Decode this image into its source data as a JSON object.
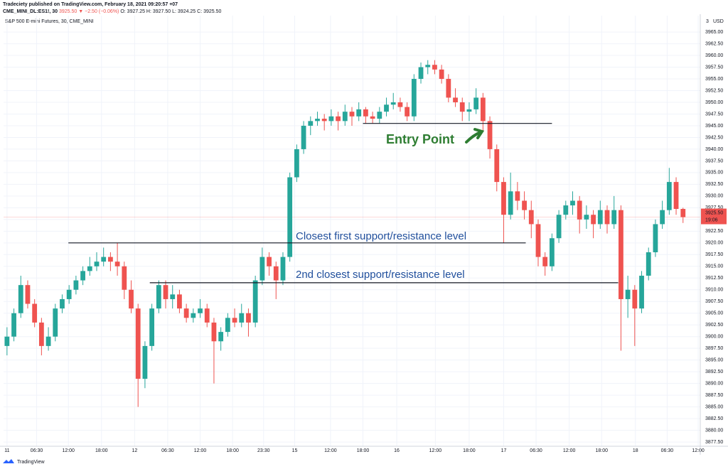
{
  "header": {
    "publisher": "Tradeciety published on TradingView.com, February 18, 2021 09:20:57 +07",
    "symbol": "CME_MINI_DL:ES1!, 30",
    "last": "3925.50",
    "change": "▼ −2.50 (−0.06%)",
    "ohlc": "O: 3927.25 H: 3927.50 L: 3924.25 C: 3925.50"
  },
  "footer": {
    "brand": "TradingView"
  },
  "chart_data": {
    "type": "candlestick",
    "title": "S&P 500 E-mini Futures, 30, CME_MINI",
    "currency_label": "USD",
    "scale_badge": "3",
    "up_color": "#26a69a",
    "down_color": "#ef5350",
    "grid": true,
    "last_price": {
      "value": 3925.5,
      "label": "3925.50",
      "countdown": "19:06",
      "color": "#ef5350"
    },
    "xlim": [
      -0.5,
      100.5
    ],
    "ylim": [
      3876.6,
      3968.5
    ],
    "xticks": [
      {
        "value": 0,
        "label": "11"
      },
      {
        "value": 4.3,
        "label": "06:30"
      },
      {
        "value": 8.9,
        "label": "12:00"
      },
      {
        "value": 13.7,
        "label": "18:00"
      },
      {
        "value": 18.5,
        "label": "12"
      },
      {
        "value": 23.3,
        "label": "06:30"
      },
      {
        "value": 28,
        "label": "12:00"
      },
      {
        "value": 32.7,
        "label": "18:00"
      },
      {
        "value": 37.2,
        "label": "23:30"
      },
      {
        "value": 41.7,
        "label": "15"
      },
      {
        "value": 46.9,
        "label": "12:00"
      },
      {
        "value": 51.6,
        "label": "18:00"
      },
      {
        "value": 56.5,
        "label": "16"
      },
      {
        "value": 62.1,
        "label": "12:00"
      },
      {
        "value": 67,
        "label": "18:00"
      },
      {
        "value": 72,
        "label": "17"
      },
      {
        "value": 76.7,
        "label": "06:30"
      },
      {
        "value": 81.5,
        "label": "12:00"
      },
      {
        "value": 86.2,
        "label": "18:00"
      },
      {
        "value": 91.1,
        "label": "18"
      },
      {
        "value": 95.7,
        "label": "06:30"
      },
      {
        "value": 100.2,
        "label": "12:00"
      }
    ],
    "yticks": [
      {
        "value": 3877.5,
        "label": "3877.50"
      },
      {
        "value": 3880,
        "label": "3880.00"
      },
      {
        "value": 3882.5,
        "label": "3882.50"
      },
      {
        "value": 3885,
        "label": "3885.00"
      },
      {
        "value": 3887.5,
        "label": "3887.50"
      },
      {
        "value": 3890,
        "label": "3890.00"
      },
      {
        "value": 3892.5,
        "label": "3892.50"
      },
      {
        "value": 3895,
        "label": "3895.00"
      },
      {
        "value": 3897.5,
        "label": "3897.50"
      },
      {
        "value": 3900,
        "label": "3900.00"
      },
      {
        "value": 3902.5,
        "label": "3902.50"
      },
      {
        "value": 3905,
        "label": "3905.00"
      },
      {
        "value": 3907.5,
        "label": "3907.50"
      },
      {
        "value": 3910,
        "label": "3910.00"
      },
      {
        "value": 3912.5,
        "label": "3912.50"
      },
      {
        "value": 3915,
        "label": "3915.00"
      },
      {
        "value": 3917.5,
        "label": "3917.50"
      },
      {
        "value": 3920,
        "label": "3920.00"
      },
      {
        "value": 3922.5,
        "label": "3922.50"
      },
      {
        "value": 3925,
        "label": "3925.00"
      },
      {
        "value": 3927.5,
        "label": "3927.50"
      },
      {
        "value": 3930,
        "label": "3930.00"
      },
      {
        "value": 3932.5,
        "label": "3932.50"
      },
      {
        "value": 3935,
        "label": "3935.00"
      },
      {
        "value": 3937.5,
        "label": "3937.50"
      },
      {
        "value": 3940,
        "label": "3940.00"
      },
      {
        "value": 3942.5,
        "label": "3942.50"
      },
      {
        "value": 3945,
        "label": "3945.00"
      },
      {
        "value": 3947.5,
        "label": "3947.50"
      },
      {
        "value": 3950,
        "label": "3950.00"
      },
      {
        "value": 3952.5,
        "label": "3952.50"
      },
      {
        "value": 3955,
        "label": "3955.00"
      },
      {
        "value": 3957.5,
        "label": "3957.50"
      },
      {
        "value": 3960,
        "label": "3960.00"
      },
      {
        "value": 3962.5,
        "label": "3962.50"
      },
      {
        "value": 3965,
        "label": "3965.00"
      }
    ],
    "levels": [
      {
        "value": 3945.5,
        "label": "Entry Point",
        "color": "#2e7d32"
      },
      {
        "value": 3920,
        "label": "Closest first support/resistance level",
        "color": "#1f4e9c"
      },
      {
        "value": 3911.5,
        "label": "2nd closest support/resistance level",
        "color": "#1f4e9c"
      }
    ],
    "candles": [
      [
        3898,
        3902,
        3896,
        3900
      ],
      [
        3900,
        3906,
        3899,
        3905
      ],
      [
        3905,
        3913,
        3904,
        3911
      ],
      [
        3911,
        3912,
        3906,
        3907
      ],
      [
        3907,
        3908,
        3902,
        3903
      ],
      [
        3903,
        3904,
        3896,
        3898
      ],
      [
        3898,
        3902,
        3897,
        3900
      ],
      [
        3900,
        3907,
        3899,
        3906
      ],
      [
        3906,
        3909,
        3905,
        3908
      ],
      [
        3908,
        3911,
        3907,
        3910
      ],
      [
        3910,
        3913,
        3909,
        3912
      ],
      [
        3912,
        3915,
        3911,
        3914
      ],
      [
        3914,
        3917,
        3913,
        3915
      ],
      [
        3915,
        3918,
        3914,
        3916
      ],
      [
        3916,
        3919,
        3915,
        3917
      ],
      [
        3917,
        3918,
        3914,
        3916
      ],
      [
        3916,
        3920,
        3913,
        3915
      ],
      [
        3915,
        3916,
        3908,
        3910
      ],
      [
        3910,
        3912,
        3905,
        3906
      ],
      [
        3906,
        3907,
        3885,
        3891
      ],
      [
        3891,
        3899,
        3889,
        3898
      ],
      [
        3898,
        3907,
        3897,
        3906
      ],
      [
        3906,
        3912,
        3905,
        3911
      ],
      [
        3911,
        3912,
        3906,
        3908
      ],
      [
        3908,
        3911,
        3906,
        3909
      ],
      [
        3909,
        3910,
        3905,
        3906
      ],
      [
        3906,
        3907,
        3903,
        3904
      ],
      [
        3904,
        3906,
        3903,
        3905
      ],
      [
        3905,
        3908,
        3904,
        3906
      ],
      [
        3906,
        3907,
        3902,
        3903
      ],
      [
        3903,
        3904,
        3890,
        3899
      ],
      [
        3899,
        3902,
        3897,
        3901
      ],
      [
        3901,
        3905,
        3900,
        3904
      ],
      [
        3904,
        3906,
        3902,
        3903
      ],
      [
        3903,
        3907,
        3902,
        3905
      ],
      [
        3905,
        3906,
        3900,
        3903
      ],
      [
        3903,
        3913,
        3902,
        3912
      ],
      [
        3912,
        3919,
        3911,
        3917
      ],
      [
        3917,
        3918,
        3913,
        3915
      ],
      [
        3915,
        3916,
        3908,
        3912
      ],
      [
        3912,
        3918,
        3911,
        3917
      ],
      [
        3917,
        3935,
        3916,
        3934
      ],
      [
        3934,
        3941,
        3933,
        3940
      ],
      [
        3940,
        3946,
        3939,
        3945
      ],
      [
        3945,
        3947,
        3943,
        3946
      ],
      [
        3946,
        3948,
        3945,
        3946.5
      ],
      [
        3946.5,
        3947.5,
        3944,
        3946
      ],
      [
        3946,
        3948.5,
        3945,
        3947
      ],
      [
        3947,
        3948,
        3944,
        3946
      ],
      [
        3946,
        3949.5,
        3945,
        3948
      ],
      [
        3948,
        3949,
        3945,
        3947
      ],
      [
        3947,
        3950,
        3946,
        3948.5
      ],
      [
        3948.5,
        3949,
        3945.5,
        3947
      ],
      [
        3947,
        3948,
        3945.5,
        3946.5
      ],
      [
        3946.5,
        3949,
        3945.5,
        3948
      ],
      [
        3948,
        3951,
        3947,
        3949.5
      ],
      [
        3949.5,
        3952,
        3948.5,
        3950
      ],
      [
        3950,
        3951,
        3948,
        3949
      ],
      [
        3949,
        3950,
        3946,
        3947
      ],
      [
        3947,
        3956,
        3946,
        3955
      ],
      [
        3955,
        3958.5,
        3954,
        3957.5
      ],
      [
        3957.5,
        3959,
        3956,
        3958
      ],
      [
        3958,
        3959,
        3956,
        3957
      ],
      [
        3957,
        3958,
        3954,
        3955
      ],
      [
        3955,
        3956,
        3950,
        3951
      ],
      [
        3951,
        3953,
        3949,
        3950
      ],
      [
        3950,
        3951,
        3946,
        3948
      ],
      [
        3948,
        3950,
        3946,
        3948.5
      ],
      [
        3948.5,
        3953,
        3947.5,
        3951
      ],
      [
        3951,
        3952,
        3944,
        3946
      ],
      [
        3946,
        3947,
        3938,
        3940
      ],
      [
        3940,
        3941,
        3931,
        3933
      ],
      [
        3933,
        3934,
        3920,
        3926
      ],
      [
        3926,
        3935,
        3925,
        3931
      ],
      [
        3931,
        3933,
        3927,
        3929
      ],
      [
        3929,
        3931,
        3925,
        3927
      ],
      [
        3927,
        3929,
        3921,
        3924
      ],
      [
        3924,
        3925,
        3915,
        3917
      ],
      [
        3917,
        3918,
        3913,
        3915
      ],
      [
        3915,
        3922,
        3914,
        3921
      ],
      [
        3921,
        3927,
        3920,
        3926
      ],
      [
        3926,
        3929,
        3925,
        3928
      ],
      [
        3928,
        3931,
        3926,
        3929
      ],
      [
        3929,
        3930,
        3922,
        3925
      ],
      [
        3925,
        3928,
        3923,
        3926
      ],
      [
        3926,
        3927,
        3921,
        3924
      ],
      [
        3924,
        3929,
        3923,
        3927
      ],
      [
        3927,
        3928,
        3922,
        3924
      ],
      [
        3924,
        3930,
        3923,
        3927
      ],
      [
        3927,
        3928,
        3897,
        3908
      ],
      [
        3908,
        3913,
        3904,
        3910
      ],
      [
        3910,
        3911,
        3898,
        3906
      ],
      [
        3906,
        3914,
        3905,
        3913
      ],
      [
        3913,
        3919,
        3912,
        3918
      ],
      [
        3918,
        3925,
        3917,
        3924
      ],
      [
        3924,
        3929,
        3923,
        3927
      ],
      [
        3927,
        3936,
        3926,
        3933
      ],
      [
        3933,
        3934,
        3926,
        3927.25
      ],
      [
        3927.25,
        3927.5,
        3924.25,
        3925.5
      ]
    ]
  }
}
